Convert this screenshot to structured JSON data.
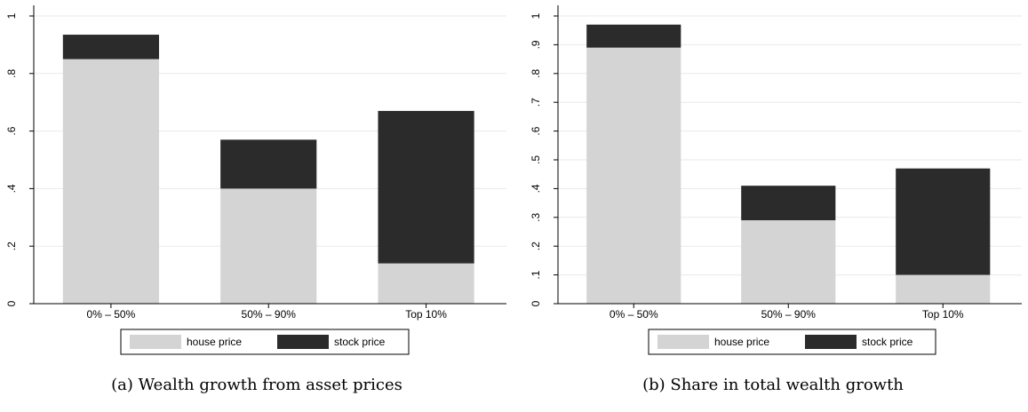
{
  "chart_data": [
    {
      "type": "stacked_bar",
      "caption": "(a) Wealth growth from asset prices",
      "categories": [
        "0% – 50%",
        "50% – 90%",
        "Top 10%"
      ],
      "series": [
        {
          "name": "house price",
          "color": "#d4d4d4",
          "values": [
            0.85,
            0.4,
            0.14
          ]
        },
        {
          "name": "stock price",
          "color": "#2b2b2b",
          "values": [
            0.085,
            0.17,
            0.53
          ]
        }
      ],
      "ylim": [
        0,
        1
      ],
      "yticks": [
        0,
        {
          "value": 0.2,
          "label": ".2"
        },
        {
          "value": 0.4,
          "label": ".4"
        },
        {
          "value": 0.6,
          "label": ".6"
        },
        {
          "value": 0.8,
          "label": ".8"
        },
        1
      ],
      "grid": true
    },
    {
      "type": "stacked_bar",
      "caption": "(b) Share in total wealth growth",
      "categories": [
        "0% – 50%",
        "50% – 90%",
        "Top 10%"
      ],
      "series": [
        {
          "name": "house price",
          "color": "#d4d4d4",
          "values": [
            0.89,
            0.29,
            0.1
          ]
        },
        {
          "name": "stock price",
          "color": "#2b2b2b",
          "values": [
            0.08,
            0.12,
            0.37
          ]
        }
      ],
      "ylim": [
        0,
        1
      ],
      "yticks": [
        0,
        {
          "value": 0.1,
          "label": ".1"
        },
        {
          "value": 0.2,
          "label": ".2"
        },
        {
          "value": 0.3,
          "label": ".3"
        },
        {
          "value": 0.4,
          "label": ".4"
        },
        {
          "value": 0.5,
          "label": ".5"
        },
        {
          "value": 0.6,
          "label": ".6"
        },
        {
          "value": 0.7,
          "label": ".7"
        },
        {
          "value": 0.8,
          "label": ".8"
        },
        {
          "value": 0.9,
          "label": ".9"
        },
        1
      ],
      "grid": true
    }
  ]
}
